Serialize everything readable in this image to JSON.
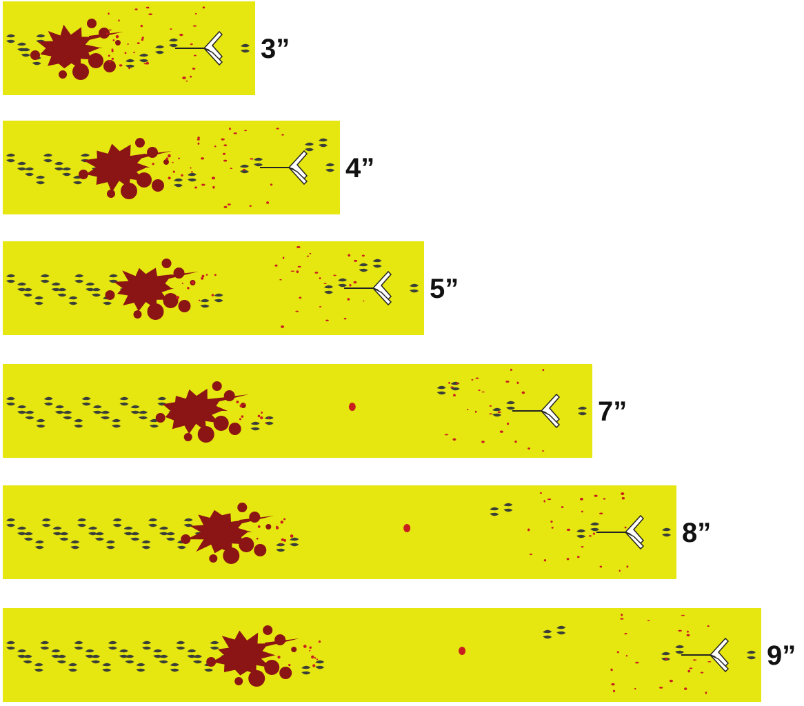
{
  "colors": {
    "background": "#ffffff",
    "strip": "#e6e610",
    "blood": "#8b1414",
    "blood_drop": "#c81e1e",
    "track": "#3a3f38",
    "arrow_fill": "#ffffff",
    "arrow_stroke": "#222222",
    "label": "#111111"
  },
  "icons": {
    "blood_splatter": "blood-splatter-icon",
    "blood_drop": "blood-drop-icon",
    "deer_track": "deer-track-icon",
    "arrow": "arrow-icon"
  },
  "strips": [
    {
      "label": "3”",
      "inches": 3
    },
    {
      "label": "4”",
      "inches": 4
    },
    {
      "label": "5”",
      "inches": 5
    },
    {
      "label": "7”",
      "inches": 7
    },
    {
      "label": "8”",
      "inches": 8
    },
    {
      "label": "9”",
      "inches": 9
    }
  ]
}
